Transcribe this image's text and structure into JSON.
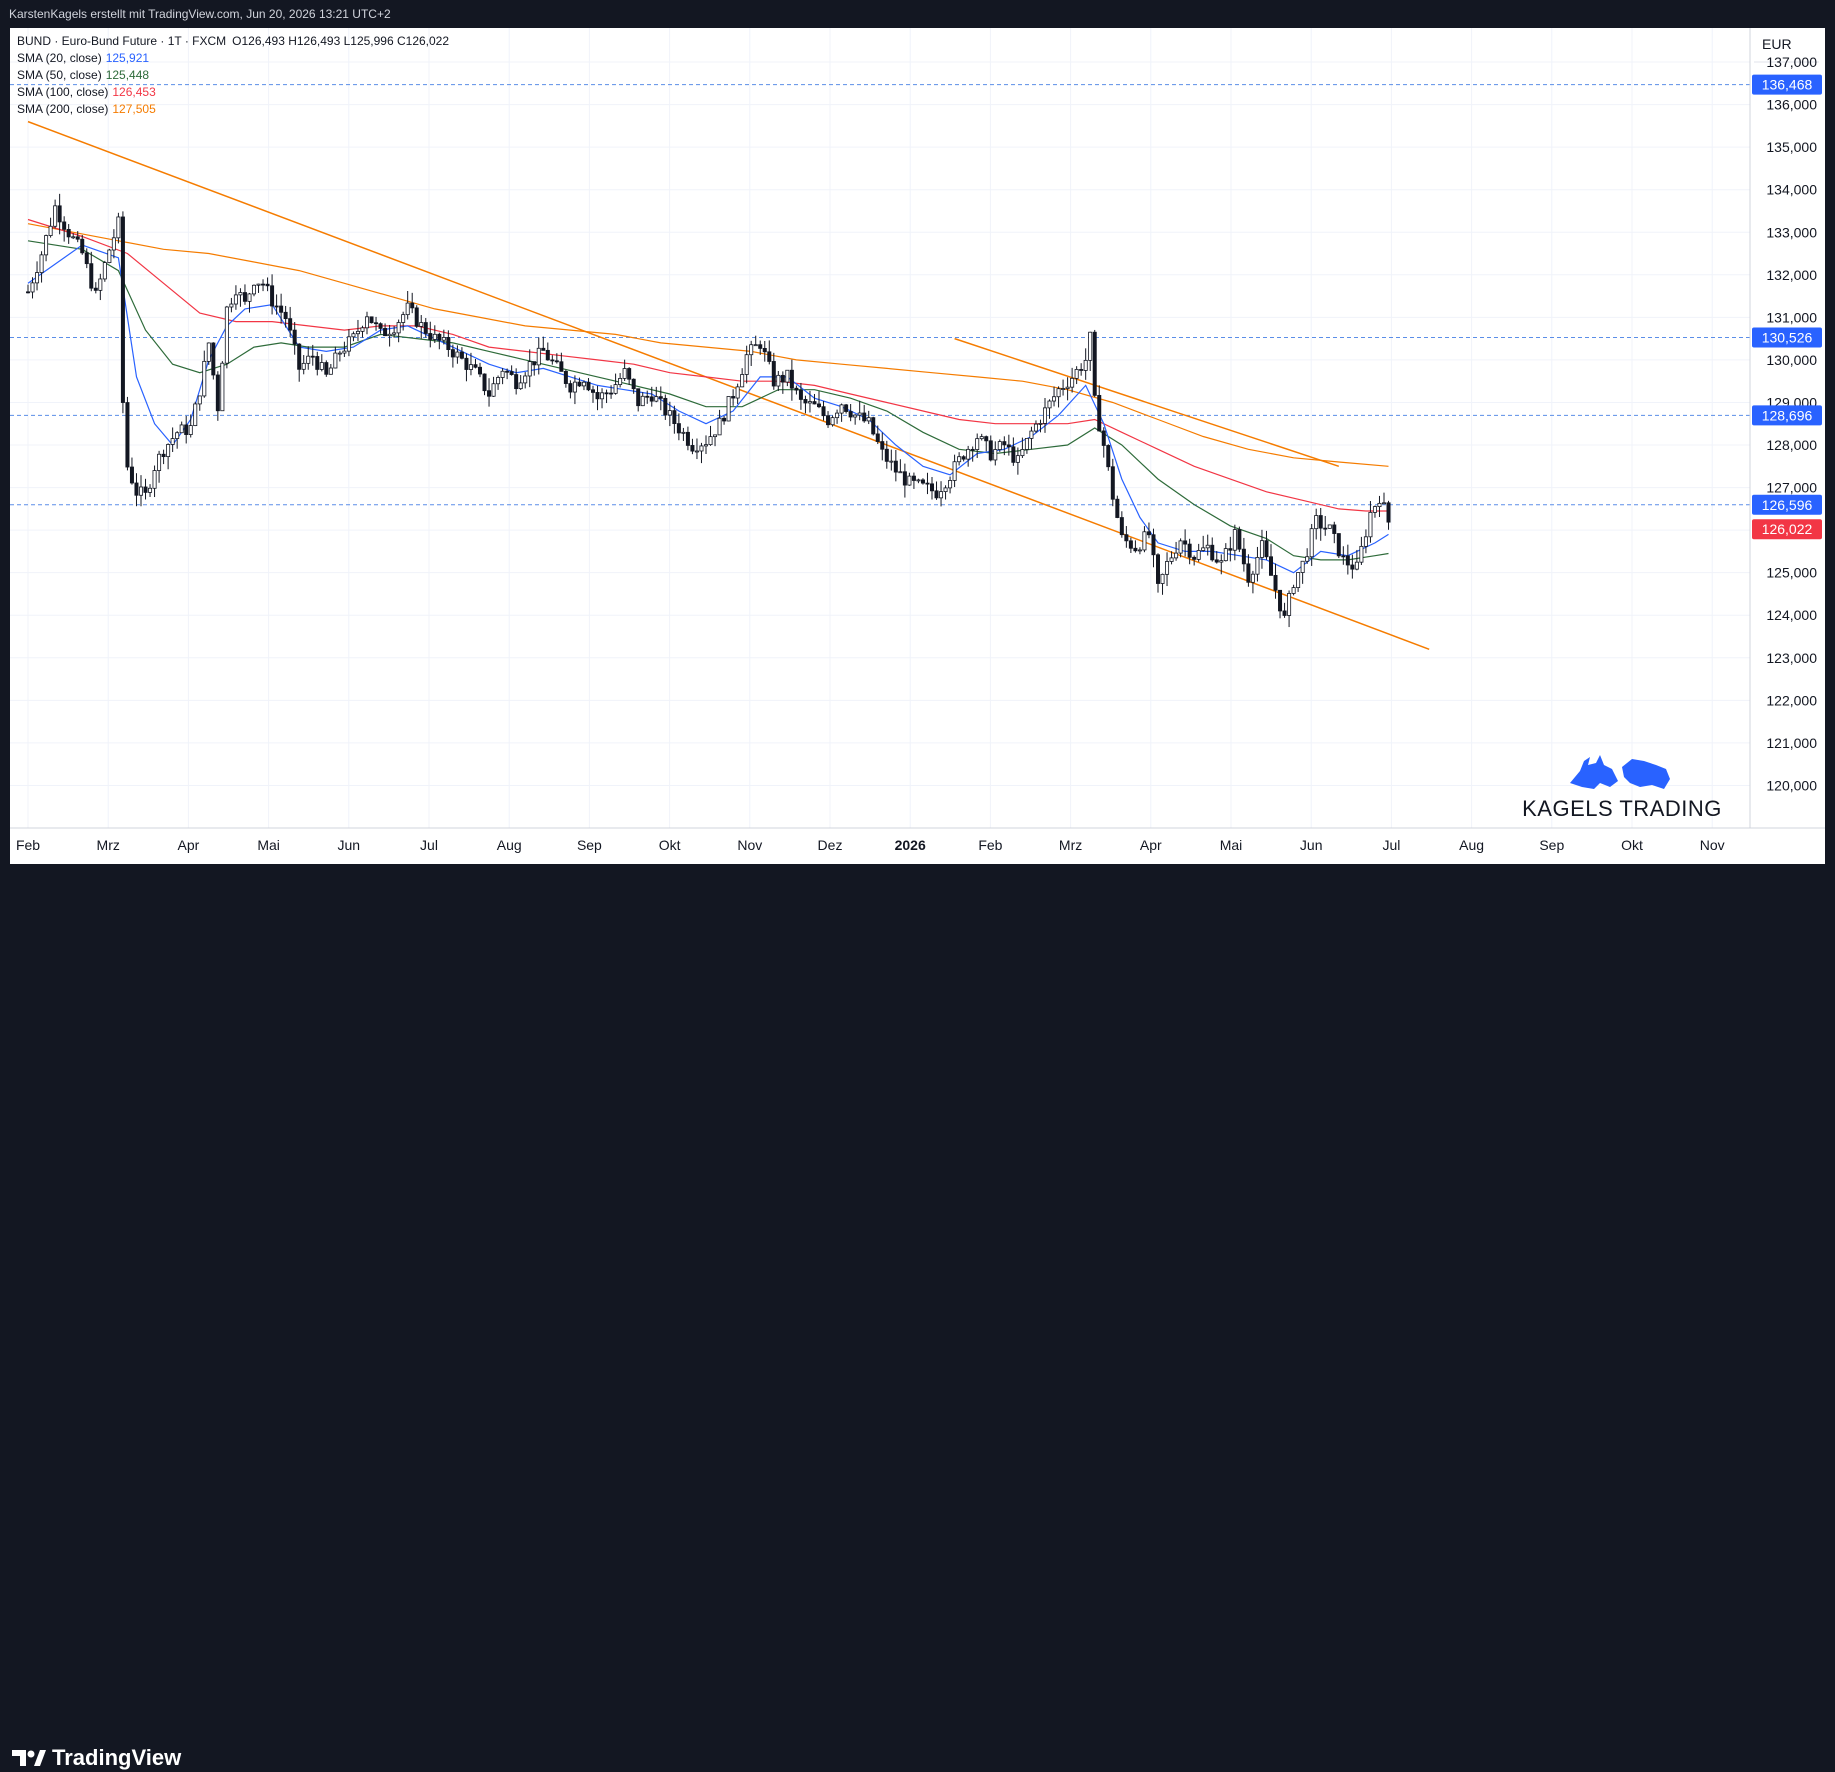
{
  "header": {
    "attribution": "KarstenKagels erstellt mit TradingView.com, Jun 20, 2026 13:21 UTC+2"
  },
  "legend": {
    "symbol": "BUND · Euro-Bund Future · 1T · FXCM",
    "ohlc": "O126,493  H126,493  L125,996  C126,022",
    "sma20_label": "SMA (20, close)",
    "sma20_value": "125,921",
    "sma50_label": "SMA (50, close)",
    "sma50_value": "125,448",
    "sma100_label": "SMA (100, close)",
    "sma100_value": "126,453",
    "sma200_label": "SMA (200, close)",
    "sma200_value": "127,505"
  },
  "footer": {
    "brand": "TradingView"
  },
  "watermark": {
    "brand": "KAGELS TRADING",
    "icon_names": [
      "bull-icon",
      "bear-icon"
    ]
  },
  "colors": {
    "sma20": "#2962ff",
    "sma50": "#2e6b3a",
    "sma100": "#f23645",
    "sma200": "#f57c00",
    "up": "#131722",
    "down": "#131722",
    "dashed": "#5b8ee8",
    "level_tag": "#2962ff",
    "last_tag": "#f23645"
  },
  "chart_data": {
    "type": "candlestick",
    "currency": "EUR",
    "ylim": [
      119.0,
      137.8
    ],
    "y_ticks": [
      "137,000",
      "136,000",
      "135,000",
      "134,000",
      "133,000",
      "132,000",
      "131,000",
      "130,000",
      "129,000",
      "128,000",
      "127,000",
      "126,000",
      "125,000",
      "124,000",
      "123,000",
      "122,000",
      "121,000",
      "120,000"
    ],
    "x_ticks": [
      "Feb",
      "Mrz",
      "Apr",
      "Mai",
      "Jun",
      "Jul",
      "Aug",
      "Sep",
      "Okt",
      "Nov",
      "Dez",
      "2026",
      "Feb",
      "Mrz",
      "Apr",
      "Mai",
      "Jun",
      "Jul",
      "Aug",
      "Sep",
      "Okt",
      "Nov"
    ],
    "horizontal_levels": [
      {
        "value": 136.468,
        "label": "136,468"
      },
      {
        "value": 130.526,
        "label": "130,526"
      },
      {
        "value": 128.696,
        "label": "128,696"
      },
      {
        "value": 126.596,
        "label": "126,596"
      }
    ],
    "last_price": {
      "value": 126.022,
      "label": "126,022"
    },
    "trendlines": [
      {
        "name": "upper-trendline",
        "from": [
          0,
          135.6
        ],
        "to": [
          310,
          123.2
        ]
      },
      {
        "name": "lower-trendline",
        "from": [
          205,
          130.5
        ],
        "to": [
          290,
          127.5
        ]
      }
    ],
    "price_path": [
      [
        0,
        131.6
      ],
      [
        3,
        132.5
      ],
      [
        6,
        133.6
      ],
      [
        9,
        133.0
      ],
      [
        12,
        132.5
      ],
      [
        15,
        131.5
      ],
      [
        18,
        132.6
      ],
      [
        20,
        133.2
      ],
      [
        21,
        129.0
      ],
      [
        22,
        127.5
      ],
      [
        24,
        126.9
      ],
      [
        26,
        126.8
      ],
      [
        28,
        127.5
      ],
      [
        30,
        127.9
      ],
      [
        33,
        128.3
      ],
      [
        36,
        128.4
      ],
      [
        38,
        129.3
      ],
      [
        40,
        130.4
      ],
      [
        42,
        128.9
      ],
      [
        44,
        131.2
      ],
      [
        46,
        131.7
      ],
      [
        48,
        131.3
      ],
      [
        50,
        131.9
      ],
      [
        52,
        131.8
      ],
      [
        54,
        131.4
      ],
      [
        57,
        131.0
      ],
      [
        60,
        129.8
      ],
      [
        63,
        130.1
      ],
      [
        66,
        129.6
      ],
      [
        69,
        130.2
      ],
      [
        72,
        130.5
      ],
      [
        75,
        131.1
      ],
      [
        78,
        130.6
      ],
      [
        81,
        130.8
      ],
      [
        84,
        131.2
      ],
      [
        87,
        130.8
      ],
      [
        90,
        130.5
      ],
      [
        93,
        130.3
      ],
      [
        96,
        130.0
      ],
      [
        99,
        129.7
      ],
      [
        102,
        129.2
      ],
      [
        105,
        129.8
      ],
      [
        108,
        129.5
      ],
      [
        111,
        129.9
      ],
      [
        114,
        130.2
      ],
      [
        117,
        129.8
      ],
      [
        120,
        129.4
      ],
      [
        123,
        129.6
      ],
      [
        126,
        129.1
      ],
      [
        129,
        129.3
      ],
      [
        132,
        129.7
      ],
      [
        135,
        129.0
      ],
      [
        138,
        129.2
      ],
      [
        141,
        128.8
      ],
      [
        144,
        128.4
      ],
      [
        147,
        128.0
      ],
      [
        150,
        128.1
      ],
      [
        153,
        128.5
      ],
      [
        156,
        129.2
      ],
      [
        159,
        130.1
      ],
      [
        162,
        130.4
      ],
      [
        165,
        129.5
      ],
      [
        168,
        129.6
      ],
      [
        171,
        129.0
      ],
      [
        174,
        128.9
      ],
      [
        177,
        128.6
      ],
      [
        180,
        129.0
      ],
      [
        183,
        128.7
      ],
      [
        186,
        128.5
      ],
      [
        189,
        127.8
      ],
      [
        192,
        127.4
      ],
      [
        195,
        127.1
      ],
      [
        198,
        127.0
      ],
      [
        201,
        126.9
      ],
      [
        204,
        127.3
      ],
      [
        207,
        127.8
      ],
      [
        210,
        128.2
      ],
      [
        213,
        127.8
      ],
      [
        216,
        128.0
      ],
      [
        219,
        127.6
      ],
      [
        222,
        128.3
      ],
      [
        225,
        128.8
      ],
      [
        228,
        129.3
      ],
      [
        231,
        129.6
      ],
      [
        234,
        130.0
      ],
      [
        235,
        130.5
      ],
      [
        236,
        129.0
      ],
      [
        238,
        128.0
      ],
      [
        240,
        126.8
      ],
      [
        242,
        125.8
      ],
      [
        245,
        125.6
      ],
      [
        248,
        125.9
      ],
      [
        250,
        124.6
      ],
      [
        252,
        125.2
      ],
      [
        255,
        125.8
      ],
      [
        258,
        125.4
      ],
      [
        261,
        125.6
      ],
      [
        264,
        125.2
      ],
      [
        267,
        125.9
      ],
      [
        270,
        124.9
      ],
      [
        273,
        125.6
      ],
      [
        276,
        124.6
      ],
      [
        278,
        123.9
      ],
      [
        280,
        124.8
      ],
      [
        282,
        125.2
      ],
      [
        285,
        126.2
      ],
      [
        288,
        126.0
      ],
      [
        291,
        125.3
      ],
      [
        294,
        125.1
      ],
      [
        297,
        126.4
      ],
      [
        299,
        126.8
      ],
      [
        301,
        126.2
      ]
    ],
    "sma20_path": [
      [
        0,
        131.8
      ],
      [
        12,
        132.7
      ],
      [
        20,
        132.4
      ],
      [
        24,
        129.6
      ],
      [
        28,
        128.5
      ],
      [
        32,
        128.0
      ],
      [
        36,
        128.6
      ],
      [
        40,
        130.0
      ],
      [
        44,
        130.8
      ],
      [
        48,
        131.2
      ],
      [
        54,
        131.3
      ],
      [
        60,
        130.3
      ],
      [
        66,
        130.2
      ],
      [
        72,
        130.3
      ],
      [
        78,
        130.7
      ],
      [
        84,
        130.8
      ],
      [
        90,
        130.5
      ],
      [
        96,
        130.2
      ],
      [
        102,
        129.9
      ],
      [
        108,
        129.7
      ],
      [
        114,
        129.8
      ],
      [
        120,
        129.6
      ],
      [
        126,
        129.4
      ],
      [
        132,
        129.3
      ],
      [
        138,
        129.2
      ],
      [
        144,
        128.8
      ],
      [
        150,
        128.5
      ],
      [
        156,
        128.8
      ],
      [
        162,
        129.6
      ],
      [
        168,
        129.6
      ],
      [
        174,
        129.1
      ],
      [
        180,
        128.9
      ],
      [
        186,
        128.6
      ],
      [
        192,
        128.0
      ],
      [
        198,
        127.5
      ],
      [
        204,
        127.3
      ],
      [
        210,
        127.8
      ],
      [
        216,
        127.9
      ],
      [
        222,
        128.2
      ],
      [
        228,
        128.7
      ],
      [
        234,
        129.4
      ],
      [
        238,
        128.5
      ],
      [
        242,
        127.2
      ],
      [
        246,
        126.3
      ],
      [
        250,
        125.7
      ],
      [
        256,
        125.5
      ],
      [
        262,
        125.5
      ],
      [
        268,
        125.4
      ],
      [
        274,
        125.3
      ],
      [
        280,
        125.0
      ],
      [
        286,
        125.5
      ],
      [
        292,
        125.4
      ],
      [
        298,
        125.7
      ],
      [
        301,
        125.9
      ]
    ],
    "sma50_path": [
      [
        0,
        132.8
      ],
      [
        12,
        132.6
      ],
      [
        20,
        132.1
      ],
      [
        26,
        130.7
      ],
      [
        32,
        129.9
      ],
      [
        38,
        129.7
      ],
      [
        44,
        129.9
      ],
      [
        50,
        130.3
      ],
      [
        56,
        130.4
      ],
      [
        62,
        130.3
      ],
      [
        70,
        130.3
      ],
      [
        78,
        130.6
      ],
      [
        86,
        130.5
      ],
      [
        94,
        130.4
      ],
      [
        102,
        130.2
      ],
      [
        110,
        130.0
      ],
      [
        118,
        129.8
      ],
      [
        126,
        129.6
      ],
      [
        134,
        129.4
      ],
      [
        142,
        129.2
      ],
      [
        150,
        128.9
      ],
      [
        158,
        128.9
      ],
      [
        166,
        129.3
      ],
      [
        174,
        129.3
      ],
      [
        182,
        129.1
      ],
      [
        190,
        128.8
      ],
      [
        198,
        128.3
      ],
      [
        206,
        127.9
      ],
      [
        214,
        127.8
      ],
      [
        222,
        127.9
      ],
      [
        230,
        128.0
      ],
      [
        236,
        128.4
      ],
      [
        242,
        128.0
      ],
      [
        250,
        127.2
      ],
      [
        258,
        126.6
      ],
      [
        266,
        126.1
      ],
      [
        274,
        125.8
      ],
      [
        280,
        125.4
      ],
      [
        286,
        125.3
      ],
      [
        292,
        125.3
      ],
      [
        298,
        125.4
      ],
      [
        301,
        125.45
      ]
    ],
    "sma100_path": [
      [
        0,
        133.3
      ],
      [
        12,
        132.9
      ],
      [
        22,
        132.5
      ],
      [
        30,
        131.8
      ],
      [
        38,
        131.1
      ],
      [
        46,
        130.9
      ],
      [
        54,
        130.9
      ],
      [
        62,
        130.8
      ],
      [
        70,
        130.7
      ],
      [
        78,
        130.8
      ],
      [
        86,
        130.8
      ],
      [
        94,
        130.6
      ],
      [
        102,
        130.3
      ],
      [
        110,
        130.2
      ],
      [
        118,
        130.1
      ],
      [
        126,
        130.0
      ],
      [
        134,
        129.9
      ],
      [
        142,
        129.7
      ],
      [
        150,
        129.6
      ],
      [
        158,
        129.5
      ],
      [
        166,
        129.5
      ],
      [
        174,
        129.4
      ],
      [
        182,
        129.2
      ],
      [
        190,
        129.0
      ],
      [
        198,
        128.8
      ],
      [
        206,
        128.6
      ],
      [
        214,
        128.5
      ],
      [
        222,
        128.5
      ],
      [
        230,
        128.5
      ],
      [
        236,
        128.6
      ],
      [
        242,
        128.3
      ],
      [
        250,
        127.9
      ],
      [
        258,
        127.5
      ],
      [
        266,
        127.2
      ],
      [
        274,
        126.9
      ],
      [
        282,
        126.7
      ],
      [
        290,
        126.5
      ],
      [
        296,
        126.45
      ],
      [
        301,
        126.45
      ]
    ],
    "sma200_path": [
      [
        0,
        133.2
      ],
      [
        20,
        132.8
      ],
      [
        30,
        132.6
      ],
      [
        40,
        132.5
      ],
      [
        50,
        132.3
      ],
      [
        60,
        132.1
      ],
      [
        70,
        131.8
      ],
      [
        80,
        131.5
      ],
      [
        90,
        131.2
      ],
      [
        100,
        131.0
      ],
      [
        110,
        130.8
      ],
      [
        120,
        130.7
      ],
      [
        130,
        130.6
      ],
      [
        140,
        130.4
      ],
      [
        150,
        130.3
      ],
      [
        160,
        130.2
      ],
      [
        170,
        130.0
      ],
      [
        180,
        129.9
      ],
      [
        190,
        129.8
      ],
      [
        200,
        129.7
      ],
      [
        210,
        129.6
      ],
      [
        220,
        129.5
      ],
      [
        230,
        129.3
      ],
      [
        240,
        129.0
      ],
      [
        250,
        128.6
      ],
      [
        260,
        128.2
      ],
      [
        270,
        127.9
      ],
      [
        280,
        127.7
      ],
      [
        290,
        127.6
      ],
      [
        301,
        127.5
      ]
    ]
  }
}
